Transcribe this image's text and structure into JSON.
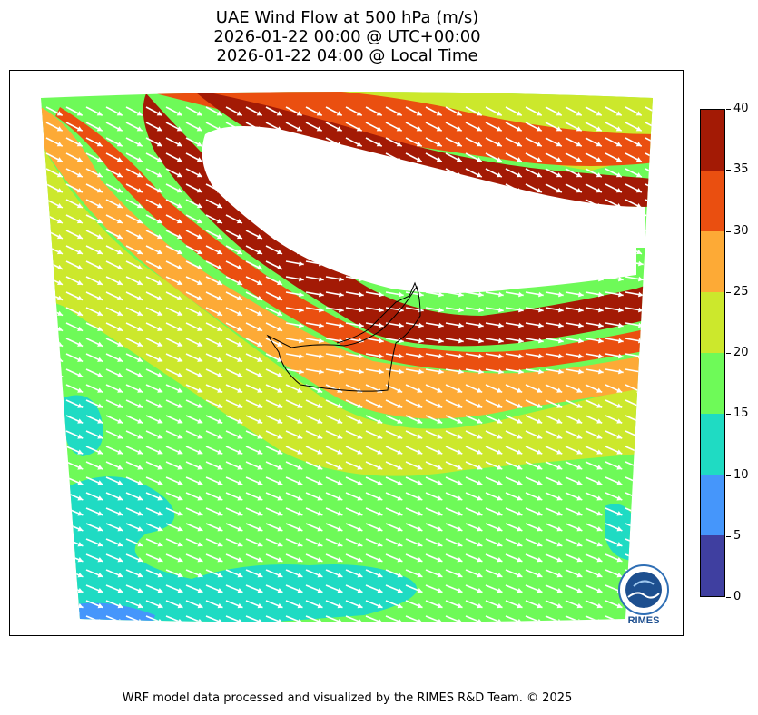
{
  "figure": {
    "title_lines": [
      "UAE Wind Flow at 500 hPa (m/s)",
      "2026-01-22 00:00 @ UTC+00:00",
      "2026-01-22 04:00 @ Local Time"
    ],
    "credit": "WRF model data processed and visualized by the RIMES R&D Team. © 2025",
    "logo_text": "RIMES"
  },
  "colorbar": {
    "ticks": [
      "0",
      "5",
      "10",
      "15",
      "20",
      "25",
      "30",
      "35",
      "40"
    ],
    "range": [
      0,
      40
    ],
    "levels": [
      {
        "from": 0,
        "to": 5,
        "color": "#3f3fa0"
      },
      {
        "from": 5,
        "to": 10,
        "color": "#4596fb"
      },
      {
        "from": 10,
        "to": 15,
        "color": "#1fdbc3"
      },
      {
        "from": 15,
        "to": 20,
        "color": "#6efa58"
      },
      {
        "from": 20,
        "to": 25,
        "color": "#cce82c"
      },
      {
        "from": 25,
        "to": 30,
        "color": "#fdaa36"
      },
      {
        "from": 30,
        "to": 35,
        "color": "#ea4f10"
      },
      {
        "from": 35,
        "to": 40,
        "color": "#a31a05"
      }
    ]
  },
  "map": {
    "region": "UAE",
    "field": "wind speed at 500 hPa (m/s)",
    "prevailing_wind_direction": "west-northwest to east-southeast",
    "no_data_region": "jet core exceeding 40 m/s, north of the UAE",
    "arrow_color": "#ffffff",
    "outline_color": "#000000"
  }
}
